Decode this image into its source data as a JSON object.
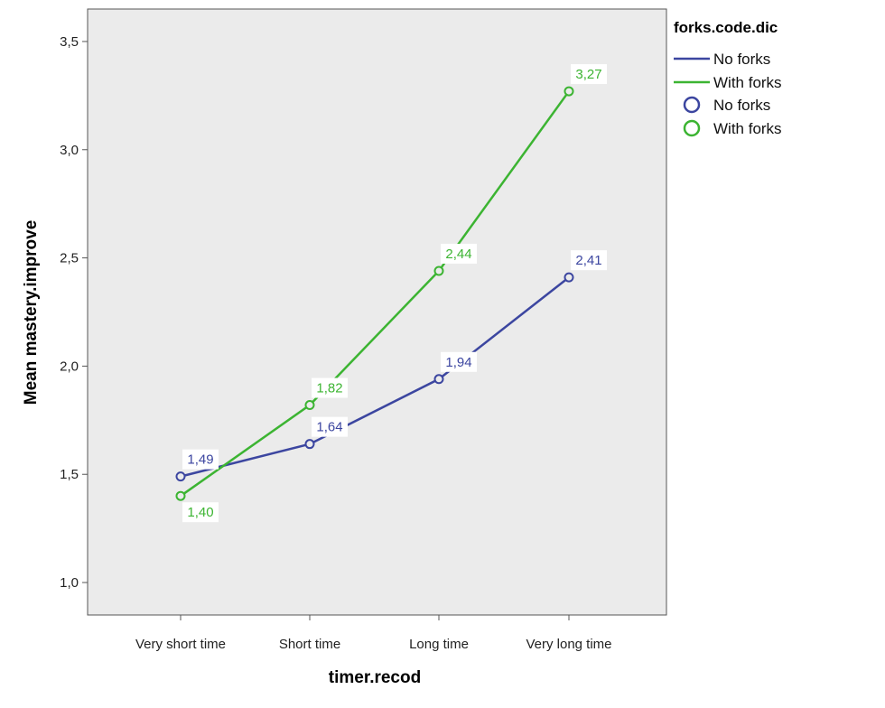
{
  "chart_data": {
    "type": "line",
    "xlabel": "timer.recod",
    "ylabel": "Mean mastery.improve",
    "categories": [
      "Very short time",
      "Short time",
      "Long time",
      "Very long time"
    ],
    "ylim": [
      0.85,
      3.65
    ],
    "yticks": [
      1.0,
      1.5,
      2.0,
      2.5,
      3.0,
      3.5
    ],
    "ytick_labels": [
      "1,0",
      "1,5",
      "2,0",
      "2,5",
      "3,0",
      "3,5"
    ],
    "grid": false,
    "plot_background": "#ebebeb",
    "legend": {
      "title": "forks.code.dic",
      "position": "right",
      "line_entries": [
        "No forks",
        "With forks"
      ],
      "marker_entries": [
        "No forks",
        "With forks"
      ]
    },
    "series": [
      {
        "name": "No forks",
        "color": "#3c46a0",
        "values": [
          1.49,
          1.64,
          1.94,
          2.41
        ],
        "labels": [
          "1,49",
          "1,64",
          "1,94",
          "2,41"
        ]
      },
      {
        "name": "With forks",
        "color": "#3cb432",
        "values": [
          1.4,
          1.82,
          2.44,
          3.27
        ],
        "labels": [
          "1,40",
          "1,82",
          "2,44",
          "3,27"
        ]
      }
    ]
  }
}
